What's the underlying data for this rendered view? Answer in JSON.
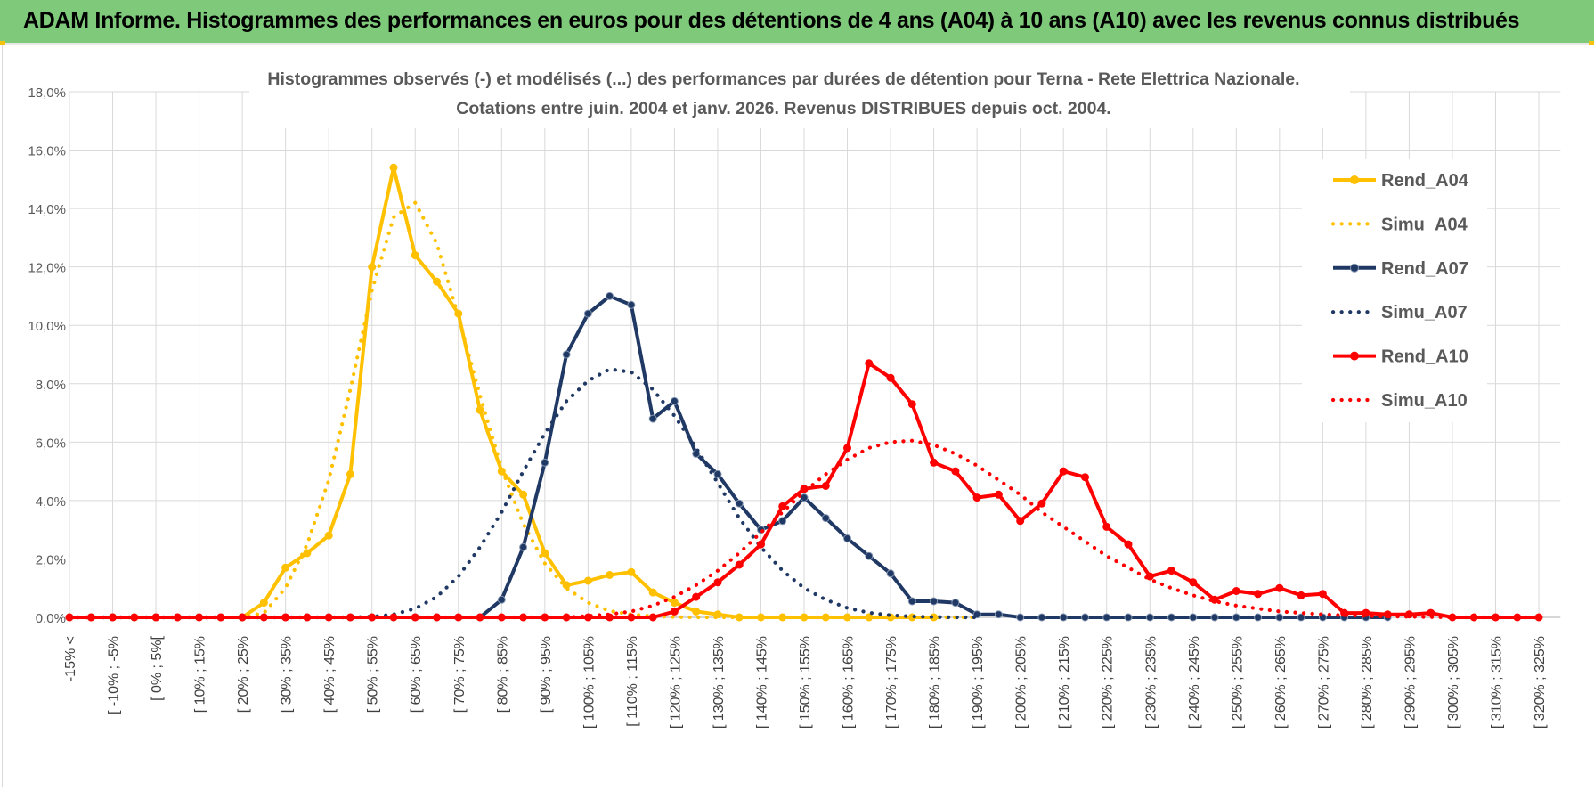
{
  "page_title": "ADAM Informe. Histogrammes des performances en euros pour des détentions de 4 ans (A04) à 10 ans (A10) avec les revenus connus distribués",
  "colors": {
    "banner": "#7fc97a",
    "A04": "#ffc000",
    "A07": "#1f3864",
    "A10": "#ff0000",
    "grid": "#d9d9d9"
  },
  "chart_data": {
    "type": "line",
    "title_line1": "Histogrammes observés (-) et modélisés (...) des performances par durées de détention pour Terna - Rete Elettrica Nazionale.",
    "title_line2": "Cotations entre juin. 2004 et janv. 2026. Revenus DISTRIBUES depuis oct. 2004.",
    "ylim": [
      0,
      18
    ],
    "y_ticks": [
      "0,0%",
      "2,0%",
      "4,0%",
      "6,0%",
      "8,0%",
      "10,0%",
      "12,0%",
      "14,0%",
      "16,0%",
      "18,0%"
    ],
    "grid": true,
    "legend_position": "right",
    "x_labels": [
      "-15% <",
      "[ -10% ; -5%",
      "[ 0% ; 5%[",
      "[ 10% ; 15%",
      "[ 20% ; 25%",
      "[ 30% ; 35%",
      "[ 40% ; 45%",
      "[ 50% ; 55%",
      "[ 60% ; 65%",
      "[ 70% ; 75%",
      "[ 80% ; 85%",
      "[ 90% ; 95%",
      "[ 100% ; 105%",
      "[ 110% ; 115%",
      "[ 120% ; 125%",
      "[ 130% ; 135%",
      "[ 140% ; 145%",
      "[ 150% ; 155%",
      "[ 160% ; 165%",
      "[ 170% ; 175%",
      "[ 180% ; 185%",
      "[ 190% ; 195%",
      "[ 200% ; 205%",
      "[ 210% ; 215%",
      "[ 220% ; 225%",
      "[ 230% ; 235%",
      "[ 240% ; 245%",
      "[ 250% ; 255%",
      "[ 260% ; 265%",
      "[ 270% ; 275%",
      "[ 280% ; 285%",
      "[ 290% ; 295%",
      "[ 300% ; 305%",
      "[ 310% ; 315%",
      "[ 320% ; 325%"
    ],
    "series": [
      {
        "name": "Rend_A04",
        "style": "solid",
        "color": "#ffc000",
        "range": [
          0,
          40
        ],
        "values": [
          0,
          0,
          0,
          0,
          0,
          0,
          0,
          0,
          0,
          0.5,
          1.7,
          2.2,
          2.8,
          4.9,
          12.0,
          15.4,
          12.4,
          11.5,
          10.4,
          7.1,
          5.0,
          4.2,
          2.2,
          1.1,
          1.25,
          1.45,
          1.55,
          0.85,
          0.5,
          0.2,
          0.1,
          0,
          0,
          0,
          0,
          0,
          0,
          0,
          0,
          0,
          0
        ]
      },
      {
        "name": "Simu_A04",
        "style": "dotted",
        "color": "#ffc000",
        "range": [
          0,
          42
        ],
        "values": [
          0,
          0,
          0,
          0,
          0,
          0,
          0,
          0,
          0,
          0.15,
          1.0,
          2.5,
          4.7,
          7.8,
          11.2,
          13.7,
          14.2,
          12.8,
          10.3,
          7.6,
          5.1,
          3.2,
          1.85,
          1.0,
          0.5,
          0.22,
          0.1,
          0.04,
          0.01,
          0,
          0,
          0,
          0,
          0,
          0,
          0,
          0,
          0,
          0,
          0,
          0,
          0,
          0
        ]
      },
      {
        "name": "Rend_A07",
        "style": "solid",
        "color": "#1f3864",
        "range": [
          0,
          61
        ],
        "values": [
          0,
          0,
          0,
          0,
          0,
          0,
          0,
          0,
          0,
          0,
          0,
          0,
          0,
          0,
          0,
          0,
          0,
          0,
          0,
          0,
          0.6,
          2.4,
          5.3,
          9.0,
          10.4,
          11.0,
          10.7,
          6.8,
          7.4,
          5.6,
          4.9,
          3.9,
          3.0,
          3.3,
          4.1,
          3.4,
          2.7,
          2.1,
          1.5,
          0.55,
          0.55,
          0.5,
          0.1,
          0.1,
          0,
          0,
          0,
          0,
          0,
          0,
          0,
          0,
          0,
          0,
          0,
          0,
          0,
          0,
          0,
          0,
          0,
          0
        ]
      },
      {
        "name": "Simu_A07",
        "style": "dotted",
        "color": "#1f3864",
        "range": [
          0,
          42
        ],
        "values": [
          0,
          0,
          0,
          0,
          0,
          0,
          0,
          0,
          0,
          0,
          0,
          0,
          0,
          0,
          0.02,
          0.1,
          0.3,
          0.7,
          1.4,
          2.4,
          3.6,
          5.0,
          6.3,
          7.4,
          8.1,
          8.5,
          8.4,
          7.8,
          6.9,
          5.8,
          4.6,
          3.4,
          2.4,
          1.6,
          1.0,
          0.6,
          0.32,
          0.16,
          0.07,
          0.03,
          0.01,
          0,
          0
        ]
      },
      {
        "name": "Rend_A10",
        "style": "solid",
        "color": "#ff0000",
        "range": [
          0,
          68
        ],
        "values": [
          0,
          0,
          0,
          0,
          0,
          0,
          0,
          0,
          0,
          0,
          0,
          0,
          0,
          0,
          0,
          0,
          0,
          0,
          0,
          0,
          0,
          0,
          0,
          0,
          0,
          0,
          0,
          0,
          0.2,
          0.7,
          1.2,
          1.8,
          2.5,
          3.8,
          4.4,
          4.5,
          5.8,
          8.7,
          8.2,
          7.3,
          5.3,
          5.0,
          4.1,
          4.2,
          3.3,
          3.9,
          5.0,
          4.8,
          3.1,
          2.5,
          1.4,
          1.6,
          1.2,
          0.6,
          0.9,
          0.8,
          1.0,
          0.75,
          0.8,
          0.15,
          0.15,
          0.1,
          0.1,
          0.15,
          0,
          0,
          0,
          0,
          0
        ]
      },
      {
        "name": "Simu_A10",
        "style": "dotted",
        "color": "#ff0000",
        "range": [
          0,
          68
        ],
        "values": [
          0,
          0,
          0,
          0,
          0,
          0,
          0,
          0,
          0,
          0,
          0,
          0,
          0,
          0,
          0,
          0,
          0,
          0,
          0,
          0,
          0,
          0,
          0,
          0,
          0.05,
          0.1,
          0.2,
          0.4,
          0.7,
          1.1,
          1.6,
          2.2,
          2.9,
          3.6,
          4.3,
          4.9,
          5.4,
          5.8,
          6.0,
          6.05,
          5.9,
          5.6,
          5.2,
          4.7,
          4.2,
          3.6,
          3.1,
          2.6,
          2.1,
          1.7,
          1.3,
          1.0,
          0.75,
          0.55,
          0.4,
          0.3,
          0.2,
          0.15,
          0.1,
          0.07,
          0.05,
          0.03,
          0.02,
          0.01,
          0,
          0,
          0,
          0,
          0
        ]
      }
    ]
  }
}
